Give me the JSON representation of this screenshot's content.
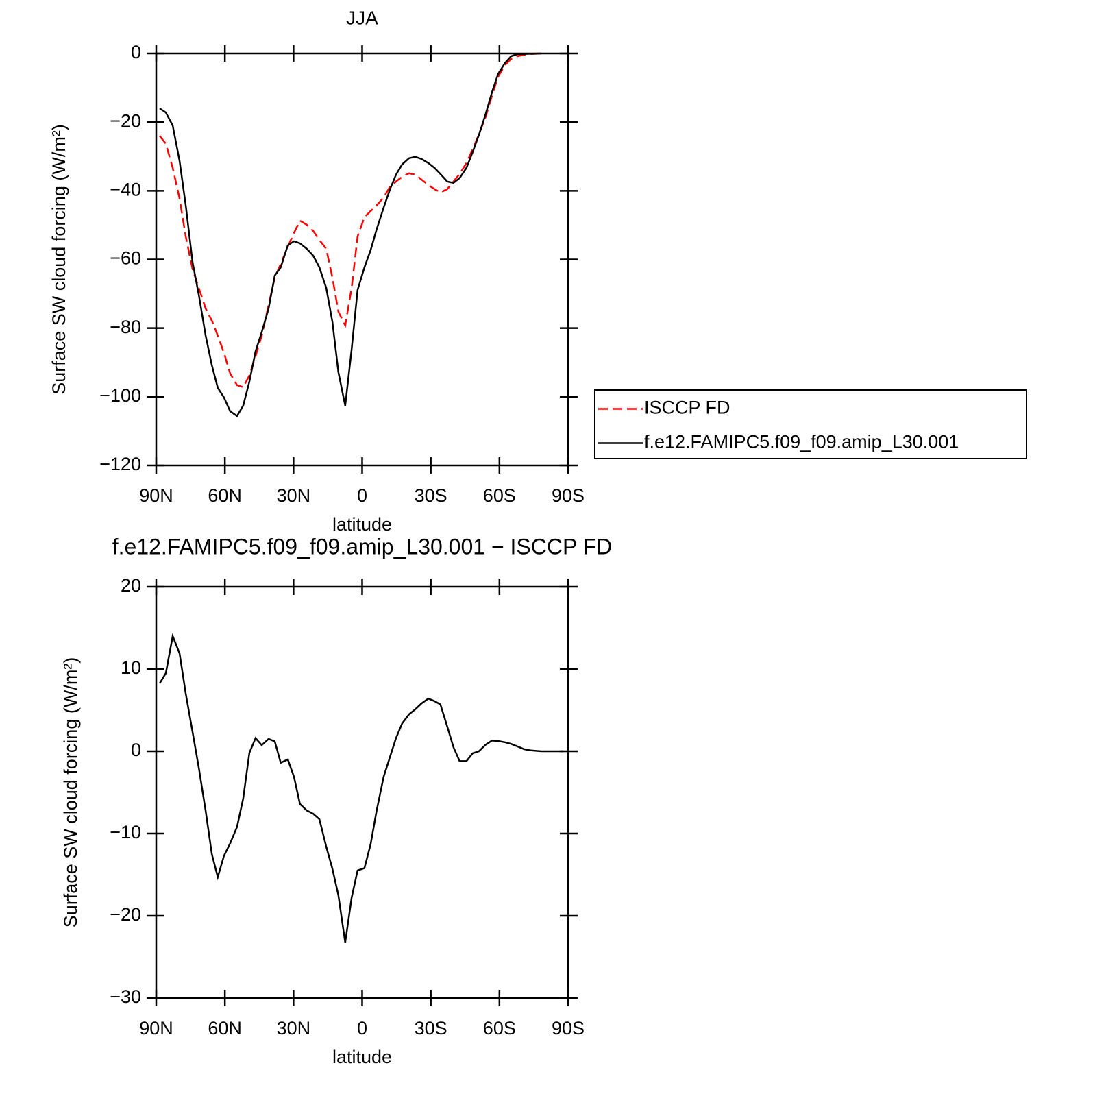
{
  "chart_data": [
    {
      "type": "line",
      "title": "JJA",
      "xlabel": "latitude",
      "ylabel": "Surface SW cloud forcing (W/m²)",
      "x": [
        88.5,
        85.8,
        82.8,
        79.8,
        77.1,
        74.1,
        71.4,
        68.4,
        65.7,
        63.1,
        60.4,
        57.7,
        54.7,
        52.0,
        49.3,
        46.6,
        43.9,
        40.9,
        38.2,
        35.6,
        32.5,
        29.8,
        27.2,
        24.2,
        21.4,
        18.7,
        15.7,
        13.0,
        10.4,
        7.4,
        4.6,
        2.0,
        -1.0,
        -3.7,
        -6.3,
        -9.4,
        -12.1,
        -14.8,
        -17.5,
        -20.5,
        -23.2,
        -25.9,
        -28.9,
        -31.6,
        -34.2,
        -37.2,
        -39.9,
        -42.6,
        -45.6,
        -48.3,
        -51.0,
        -54.0,
        -56.7,
        -59.4,
        -62.4,
        -65.1,
        -67.8,
        -72.3,
        -78.3
      ],
      "series": [
        {
          "name": "ISCCP FD",
          "color": "#ff0000",
          "line_style": "dashed",
          "values": [
            -24,
            -26.3,
            -33.3,
            -42.3,
            -53.3,
            -62.9,
            -68.3,
            -74.3,
            -77.8,
            -82.2,
            -87.2,
            -93.2,
            -96.6,
            -97.2,
            -93.8,
            -88.2,
            -82.2,
            -73.3,
            -65.3,
            -61.3,
            -56.3,
            -52.3,
            -48.7,
            -49.9,
            -51.7,
            -54.3,
            -56.9,
            -65.3,
            -75.2,
            -79.2,
            -68.3,
            -53.3,
            -47.7,
            -45.9,
            -44.3,
            -41.9,
            -38.9,
            -37.3,
            -35.9,
            -34.9,
            -35.3,
            -36.7,
            -38.3,
            -39.5,
            -40.5,
            -39.5,
            -37.3,
            -35.1,
            -31.9,
            -27.9,
            -23.6,
            -18.4,
            -12.4,
            -6.8,
            -3.4,
            -1.6,
            -0.8,
            -0.2,
            0
          ]
        },
        {
          "name": "f.e12.FAMIPC5.f09_f09.amip_L30.001",
          "color": "#000000",
          "line_style": "solid",
          "values": [
            -16,
            -17.2,
            -21,
            -31.3,
            -44.3,
            -60.9,
            -70.3,
            -82.2,
            -90.8,
            -97.4,
            -100.2,
            -104.2,
            -105.6,
            -102.6,
            -95.6,
            -86.8,
            -81.2,
            -74.3,
            -64.7,
            -62.3,
            -55.9,
            -54.7,
            -55.3,
            -56.9,
            -58.9,
            -62.3,
            -68.3,
            -78.2,
            -92.8,
            -102.6,
            -86.2,
            -68.9,
            -62.3,
            -57.3,
            -51.3,
            -44.9,
            -39.7,
            -35.3,
            -32.3,
            -30.5,
            -30.1,
            -30.7,
            -31.9,
            -33.3,
            -35.1,
            -37.3,
            -37.7,
            -36.3,
            -33.3,
            -28.7,
            -23.8,
            -17.6,
            -11.4,
            -6.0,
            -2.8,
            -0.8,
            -0.2,
            -0.1,
            0
          ]
        }
      ],
      "xlim": [
        90,
        -90
      ],
      "xticks": [
        {
          "value": 90,
          "label": "90N"
        },
        {
          "value": 60,
          "label": "60N"
        },
        {
          "value": 30,
          "label": "30N"
        },
        0,
        {
          "value": -30,
          "label": "30S"
        },
        {
          "value": -60,
          "label": "60S"
        },
        {
          "value": -90,
          "label": "90S"
        }
      ],
      "ylim": [
        -120,
        0
      ],
      "yticks": [
        {
          "value": -120,
          "label": "−120"
        },
        {
          "value": -100,
          "label": "−100"
        },
        {
          "value": -80,
          "label": "−80"
        },
        {
          "value": -60,
          "label": "−60"
        },
        {
          "value": -40,
          "label": "−40"
        },
        {
          "value": -20,
          "label": "−20"
        },
        0
      ],
      "legend": "right"
    },
    {
      "type": "line",
      "title": "f.e12.FAMIPC5.f09_f09.amip_L30.001 − ISCCP FD",
      "xlabel": "latitude",
      "ylabel": "Surface SW cloud forcing (W/m²)",
      "x": [
        88.5,
        85.8,
        82.8,
        79.8,
        77.1,
        74.1,
        71.4,
        68.4,
        65.7,
        63.1,
        60.4,
        57.7,
        54.7,
        52.0,
        49.3,
        46.6,
        43.9,
        40.9,
        38.2,
        35.6,
        32.5,
        29.8,
        27.2,
        24.2,
        21.4,
        18.7,
        15.7,
        13.0,
        10.4,
        7.4,
        4.6,
        2.0,
        -1.0,
        -3.7,
        -6.3,
        -9.4,
        -12.1,
        -14.8,
        -17.5,
        -20.5,
        -23.2,
        -25.9,
        -28.9,
        -31.6,
        -34.2,
        -37.2,
        -39.9,
        -42.6,
        -45.6,
        -48.3,
        -51.0,
        -54.0,
        -56.7,
        -59.4,
        -62.4,
        -65.1,
        -67.8,
        -70.8,
        -73.8,
        -78.3,
        -87.9
      ],
      "values": [
        8.25,
        9.5,
        14,
        11.9,
        7.0,
        2.3,
        -2.0,
        -7.25,
        -12.5,
        -15.3,
        -12.7,
        -11.2,
        -9.2,
        -5.75,
        -0.2,
        1.6,
        0.75,
        1.5,
        1.2,
        -1.4,
        -1.0,
        -3.1,
        -6.4,
        -7.2,
        -7.6,
        -8.25,
        -11.6,
        -14.3,
        -17.5,
        -23.25,
        -17.8,
        -14.5,
        -14.2,
        -11.3,
        -7.25,
        -3.1,
        -0.75,
        1.6,
        3.4,
        4.5,
        5.1,
        5.8,
        6.4,
        6.1,
        5.7,
        3.0,
        0.5,
        -1.2,
        -1.2,
        -0.25,
        0,
        0.8,
        1.3,
        1.25,
        1.1,
        0.9,
        0.6,
        0.25,
        0.1,
        0,
        0
      ],
      "color": "#000000",
      "xlim": [
        90,
        -90
      ],
      "xticks": [
        {
          "value": 90,
          "label": "90N"
        },
        {
          "value": 60,
          "label": "60N"
        },
        {
          "value": 30,
          "label": "30N"
        },
        0,
        {
          "value": -30,
          "label": "30S"
        },
        {
          "value": -60,
          "label": "60S"
        },
        {
          "value": -90,
          "label": "90S"
        }
      ],
      "ylim": [
        -30,
        20
      ],
      "yticks": [
        {
          "value": -30,
          "label": "−30"
        },
        {
          "value": -20,
          "label": "−20"
        },
        {
          "value": -10,
          "label": "−10"
        },
        0,
        10,
        20
      ]
    }
  ]
}
